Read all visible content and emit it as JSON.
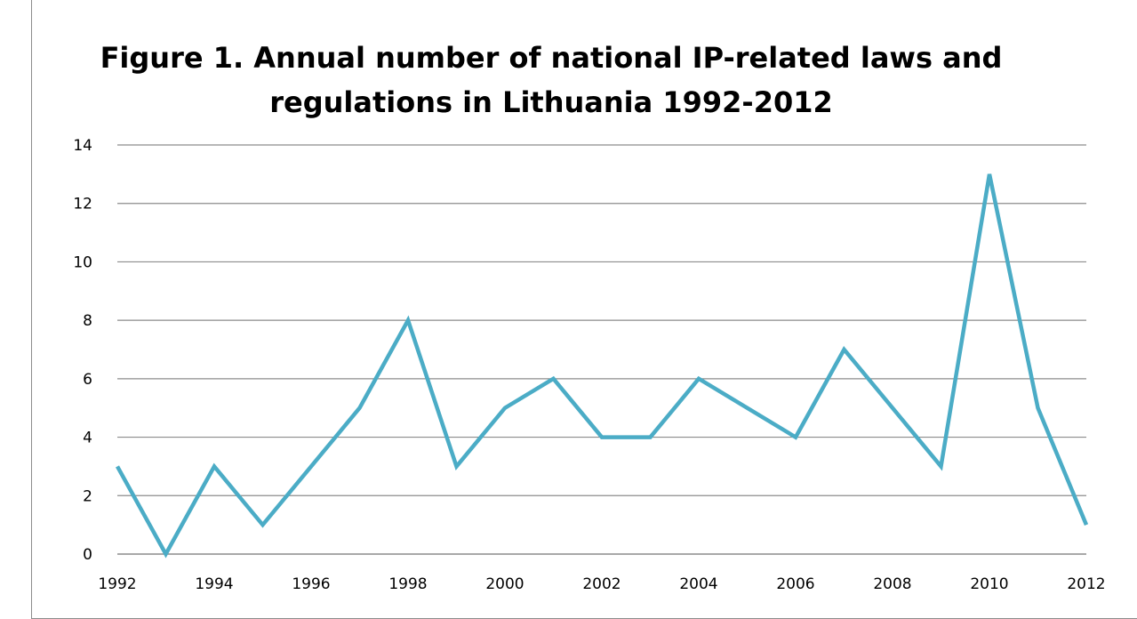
{
  "chart_data": {
    "type": "line",
    "title": "Figure 1. Annual number of national IP-related laws and regulations in Lithuania 1992-2012",
    "title_lines": [
      "Figure 1. Annual number of national IP-related laws and",
      "regulations in Lithuania 1992-2012"
    ],
    "xlabel": "",
    "ylabel": "",
    "x": [
      1992,
      1993,
      1994,
      1995,
      1996,
      1997,
      1998,
      1999,
      2000,
      2001,
      2002,
      2003,
      2004,
      2005,
      2006,
      2007,
      2008,
      2009,
      2010,
      2011,
      2012
    ],
    "series": [
      {
        "values": [
          3,
          0,
          3,
          1,
          3,
          5,
          8,
          3,
          5,
          6,
          4,
          4,
          6,
          5,
          4,
          7,
          5,
          3,
          13,
          5,
          1
        ]
      }
    ],
    "x_ticks": [
      "1992",
      "1994",
      "1996",
      "1998",
      "2000",
      "2002",
      "2004",
      "2006",
      "2008",
      "2010",
      "2012"
    ],
    "y_ticks": [
      "0",
      "2",
      "4",
      "6",
      "8",
      "10",
      "12",
      "14"
    ],
    "xlim": [
      1992,
      2012
    ],
    "ylim": [
      0,
      14
    ],
    "grid": true,
    "legend": "none",
    "line_color": "#4bacc6",
    "grid_color": "#8c8c8c"
  }
}
